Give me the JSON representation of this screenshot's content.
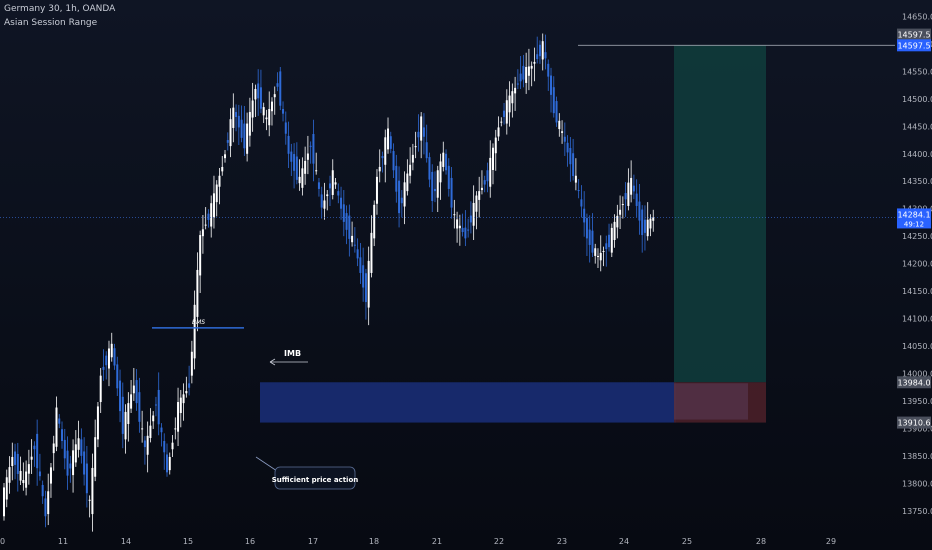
{
  "header": {
    "symbol_line": "Germany 30, 1h, OANDA",
    "indicator_line": "Asian Session Range"
  },
  "colors": {
    "background": "#0b0f1a",
    "bull_candle": "#ffffff",
    "bear_candle": "#2f6bd8",
    "demand_zone": "#1a2f7a",
    "target_zone": "#0f3b3b",
    "stop_zone": "#4a1f28",
    "axis_text": "#b2b5be",
    "price_tag_high": "#2962ff",
    "price_tag_current": "#2962ff",
    "price_tag_zone": "#4a4f5c"
  },
  "chart_data": {
    "type": "candlestick",
    "title": "",
    "x_ticks": [
      "10",
      "11",
      "14",
      "15",
      "16",
      "17",
      "18",
      "21",
      "22",
      "23",
      "24",
      "25",
      "28",
      "29"
    ],
    "y_ticks": [
      13750,
      13800,
      13850,
      13900,
      13950,
      14000,
      14050,
      14100,
      14150,
      14200,
      14250,
      14300,
      14350,
      14400,
      14450,
      14500,
      14550,
      14600,
      14650
    ],
    "ylim": [
      13715,
      14680
    ],
    "price_tags": {
      "swing_high": "14597.5",
      "zone_top": "13984.0",
      "zone_bottom": "13910.6",
      "current_price": "14284.1",
      "countdown": "49:12"
    },
    "annotations": {
      "bos_label": "BMS",
      "imb_label": "IMB",
      "callout": "Sufficient price action"
    },
    "levels": {
      "swing_high": 14597.5,
      "zone_top": 13984.0,
      "zone_bottom": 13910.6,
      "current": 14284.1,
      "bos_level": 14083,
      "position_entry": 13984.0,
      "position_target": 14597.5,
      "position_stop": 13910.6
    },
    "ohlc_path": [
      13760,
      13850,
      13800,
      13870,
      13740,
      13930,
      13820,
      13880,
      13760,
      14000,
      14050,
      13900,
      13980,
      13860,
      13950,
      13820,
      13940,
      13980,
      14250,
      14300,
      14380,
      14480,
      14420,
      14520,
      14460,
      14530,
      14400,
      14350,
      14420,
      14300,
      14360,
      14280,
      14230,
      14140,
      14360,
      14440,
      14300,
      14380,
      14460,
      14320,
      14400,
      14280,
      14250,
      14320,
      14360,
      14450,
      14500,
      14540,
      14560,
      14597,
      14480,
      14420,
      14350,
      14250,
      14210,
      14240,
      14300,
      14350,
      14260,
      14284
    ]
  }
}
